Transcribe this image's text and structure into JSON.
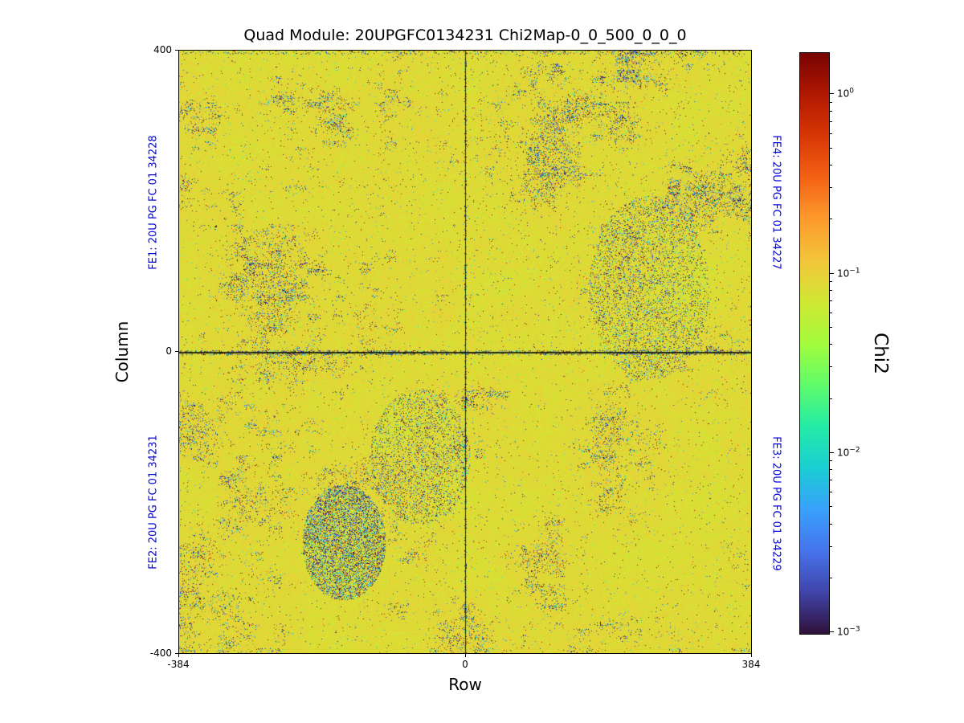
{
  "figure": {
    "title": "Quad Module: 20UPGFC0134231 Chi2Map-0_0_500_0_0_0",
    "xlabel": "Row",
    "ylabel": "Column",
    "colorbar_label": "Chi2"
  },
  "axes": {
    "xticks": [
      "-384",
      "0",
      "384"
    ],
    "yticks": [
      "400",
      "0",
      "-400"
    ]
  },
  "colorbar": {
    "scale": "log",
    "colormap": "turbo",
    "tick_values": [
      1,
      0.1,
      0.01,
      0.001
    ],
    "ticks": [
      {
        "base": "10",
        "exp": "0"
      },
      {
        "base": "10",
        "exp": "−1"
      },
      {
        "base": "10",
        "exp": "−2"
      },
      {
        "base": "10",
        "exp": "−3"
      }
    ]
  },
  "colors": {
    "fe_label": "#0000e0",
    "text": "#000000",
    "background": "#ffffff",
    "heatmap_dominant": "#ded936"
  },
  "fe_labels": [
    {
      "text": "FE1: 20U PG FC 01 34228",
      "position": "left-top"
    },
    {
      "text": "FE2: 20U PG FC 01 34231",
      "position": "left-bottom"
    },
    {
      "text": "FE4: 20U PG FC 01 34227",
      "position": "right-top"
    },
    {
      "text": "FE3: 20U PG FC 01 34229",
      "position": "right-bottom"
    }
  ],
  "chart_data": {
    "type": "heatmap",
    "title": "Quad Module: 20UPGFC0134231 Chi2Map-0_0_500_0_0_0",
    "xlabel": "Row",
    "ylabel": "Column",
    "xlim": [
      -384,
      384
    ],
    "ylim": [
      -400,
      400
    ],
    "xticks": [
      -384,
      0,
      384
    ],
    "yticks": [
      -400,
      0,
      400
    ],
    "value_label": "Chi2",
    "value_scale": "log",
    "value_range": [
      0.00098,
      1.7
    ],
    "colorbar_tick_values": [
      1,
      0.1,
      0.01,
      0.001
    ],
    "colormap": "turbo",
    "background_value": 0.085,
    "low_speckle_value_range": [
      0.001,
      0.01
    ],
    "high_speckle_value_range": [
      1.0,
      1.7
    ],
    "low_speckle_fraction": 0.045,
    "high_speckle_fraction": 0.003,
    "crosshair": {
      "row": 0,
      "column": 0
    },
    "quadrants": [
      {
        "front_end": "FE1",
        "serial": "20U PG FC 01 34228",
        "position": "left-top"
      },
      {
        "front_end": "FE2",
        "serial": "20U PG FC 01 34231",
        "position": "left-bottom"
      },
      {
        "front_end": "FE4",
        "serial": "20U PG FC 01 34227",
        "position": "right-top"
      },
      {
        "front_end": "FE3",
        "serial": "20U PG FC 01 34229",
        "position": "right-bottom"
      }
    ],
    "notes": "Per-pixel chi2 map of a quad module: mostly uniform near 0.09 (yellow) with scattered low-chi2 dark pixels forming blocky column-group patterns, sparse high-chi2 red/orange pixels, dark lines along row 0 and column 0 chip boundaries, and a dense dark patch near row -190, column -230."
  }
}
